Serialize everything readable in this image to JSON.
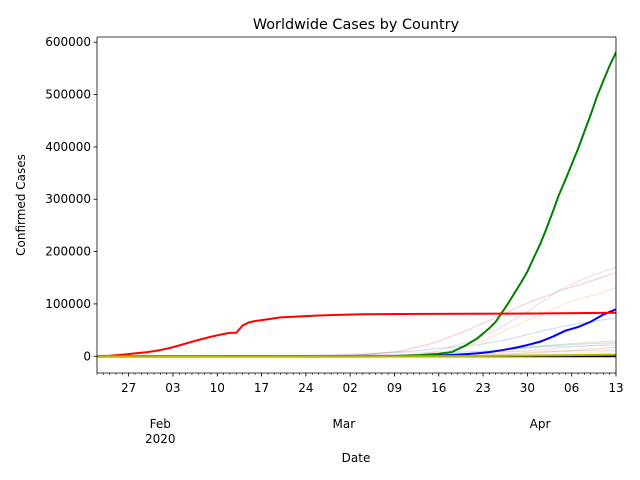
{
  "chart_data": {
    "type": "line",
    "title": "Worldwide Cases by Country",
    "xlabel": "Date",
    "ylabel": "Confirmed Cases",
    "x_start": "2020-01-22",
    "x_end": "2020-04-13",
    "xlim": [
      "2020-01-22",
      "2020-04-13"
    ],
    "ylim": [
      -32000,
      610000
    ],
    "grid": false,
    "legend": "none",
    "y_ticks": [
      0,
      100000,
      200000,
      300000,
      400000,
      500000,
      600000
    ],
    "y_tick_labels": [
      "0",
      "100000",
      "200000",
      "300000",
      "400000",
      "500000",
      "600000"
    ],
    "x_ticks": [
      {
        "date": "2020-01-27",
        "label": "27"
      },
      {
        "date": "2020-02-03",
        "label": "03"
      },
      {
        "date": "2020-02-10",
        "label": "10"
      },
      {
        "date": "2020-02-17",
        "label": "17"
      },
      {
        "date": "2020-02-24",
        "label": "24"
      },
      {
        "date": "2020-03-02",
        "label": "02"
      },
      {
        "date": "2020-03-09",
        "label": "09"
      },
      {
        "date": "2020-03-16",
        "label": "16"
      },
      {
        "date": "2020-03-23",
        "label": "23"
      },
      {
        "date": "2020-03-30",
        "label": "30"
      },
      {
        "date": "2020-04-06",
        "label": "06"
      },
      {
        "date": "2020-04-13",
        "label": "13"
      }
    ],
    "month_labels": [
      {
        "date": "2020-02-01",
        "label": "Feb",
        "year": "2020"
      },
      {
        "date": "2020-03-01",
        "label": "Mar",
        "year": ""
      },
      {
        "date": "2020-04-01",
        "label": "Apr",
        "year": ""
      }
    ],
    "series": [
      {
        "color": "#d62728",
        "width": 1,
        "alpha": 0.25,
        "points": [
          [
            "2020-01-22",
            0
          ],
          [
            "2020-02-21",
            0
          ],
          [
            "2020-02-28",
            800
          ],
          [
            "2020-03-05",
            3900
          ],
          [
            "2020-03-10",
            10000
          ],
          [
            "2020-03-15",
            24700
          ],
          [
            "2020-03-20",
            47000
          ],
          [
            "2020-03-25",
            74000
          ],
          [
            "2020-03-30",
            101700
          ],
          [
            "2020-04-04",
            124600
          ],
          [
            "2020-04-09",
            143600
          ],
          [
            "2020-04-13",
            159500
          ]
        ]
      },
      {
        "color": "#9467bd",
        "width": 1,
        "alpha": 0.25,
        "points": [
          [
            "2020-01-22",
            0
          ],
          [
            "2020-02-28",
            100
          ],
          [
            "2020-03-05",
            300
          ],
          [
            "2020-03-10",
            1700
          ],
          [
            "2020-03-15",
            7800
          ],
          [
            "2020-03-20",
            25000
          ],
          [
            "2020-03-25",
            49500
          ],
          [
            "2020-03-30",
            85200
          ],
          [
            "2020-04-04",
            126200
          ],
          [
            "2020-04-09",
            153200
          ],
          [
            "2020-04-13",
            170100
          ]
        ]
      },
      {
        "color": "#ff7f0e",
        "width": 1,
        "alpha": 0.25,
        "points": [
          [
            "2020-01-22",
            0
          ],
          [
            "2020-03-01",
            130
          ],
          [
            "2020-03-08",
            1100
          ],
          [
            "2020-03-13",
            3700
          ],
          [
            "2020-03-18",
            9100
          ],
          [
            "2020-03-23",
            30000
          ],
          [
            "2020-03-28",
            57700
          ],
          [
            "2020-04-02",
            84000
          ],
          [
            "2020-04-07",
            109700
          ],
          [
            "2020-04-10",
            118800
          ],
          [
            "2020-04-13",
            131400
          ]
        ]
      },
      {
        "color": "#1f77b4",
        "width": 1,
        "alpha": 0.25,
        "points": [
          [
            "2020-01-22",
            0
          ],
          [
            "2020-02-20",
            0
          ],
          [
            "2020-02-26",
            140
          ],
          [
            "2020-03-02",
            1500
          ],
          [
            "2020-03-07",
            5800
          ],
          [
            "2020-03-12",
            10000
          ],
          [
            "2020-03-17",
            16200
          ],
          [
            "2020-03-22",
            21600
          ],
          [
            "2020-03-27",
            32300
          ],
          [
            "2020-04-01",
            47600
          ],
          [
            "2020-04-06",
            60500
          ],
          [
            "2020-04-13",
            73300
          ]
        ]
      },
      {
        "color": "#8c564b",
        "width": 1,
        "alpha": 0.25,
        "points": [
          [
            "2020-01-22",
            0
          ],
          [
            "2020-03-03",
            50
          ],
          [
            "2020-03-10",
            380
          ],
          [
            "2020-03-15",
            1140
          ],
          [
            "2020-03-20",
            3980
          ],
          [
            "2020-03-25",
            9530
          ],
          [
            "2020-03-30",
            22140
          ],
          [
            "2020-04-04",
            41900
          ],
          [
            "2020-04-09",
            65900
          ],
          [
            "2020-04-13",
            88600
          ]
        ]
      },
      {
        "color": "#2ca02c",
        "width": 1,
        "alpha": 0.25,
        "points": [
          [
            "2020-01-22",
            0
          ],
          [
            "2020-03-02",
            40
          ],
          [
            "2020-03-08",
            270
          ],
          [
            "2020-03-14",
            1140
          ],
          [
            "2020-03-20",
            4200
          ],
          [
            "2020-03-26",
            11800
          ],
          [
            "2020-04-01",
            19900
          ],
          [
            "2020-04-07",
            24800
          ],
          [
            "2020-04-13",
            29100
          ]
        ]
      },
      {
        "color": "#7f7f7f",
        "width": 1,
        "alpha": 0.25,
        "points": [
          [
            "2020-01-22",
            0
          ],
          [
            "2020-03-04",
            10
          ],
          [
            "2020-03-10",
            50
          ],
          [
            "2020-03-16",
            1300
          ],
          [
            "2020-03-22",
            5700
          ],
          [
            "2020-03-28",
            15200
          ],
          [
            "2020-04-03",
            19900
          ],
          [
            "2020-04-08",
            23300
          ],
          [
            "2020-04-13",
            25700
          ]
        ]
      },
      {
        "color": "#bcbd22",
        "width": 1,
        "alpha": 0.25,
        "points": [
          [
            "2020-01-22",
            0
          ],
          [
            "2020-03-05",
            30
          ],
          [
            "2020-03-11",
            140
          ],
          [
            "2020-03-17",
            480
          ],
          [
            "2020-03-23",
            1630
          ],
          [
            "2020-03-29",
            5890
          ],
          [
            "2020-04-04",
            9840
          ],
          [
            "2020-04-09",
            14070
          ],
          [
            "2020-04-13",
            17180
          ]
        ]
      },
      {
        "color": "#e377c2",
        "width": 1,
        "alpha": 0.25,
        "points": [
          [
            "2020-01-22",
            0
          ],
          [
            "2020-02-27",
            10
          ],
          [
            "2020-03-05",
            70
          ],
          [
            "2020-03-12",
            700
          ],
          [
            "2020-03-18",
            2500
          ],
          [
            "2020-03-24",
            5500
          ],
          [
            "2020-03-30",
            10900
          ],
          [
            "2020-04-05",
            16500
          ],
          [
            "2020-04-13",
            24400
          ]
        ]
      },
      {
        "color": "#17becf",
        "width": 1,
        "alpha": 0.25,
        "points": [
          [
            "2020-01-22",
            0
          ],
          [
            "2020-03-01",
            80
          ],
          [
            "2020-03-08",
            600
          ],
          [
            "2020-03-14",
            3700
          ],
          [
            "2020-03-20",
            8000
          ],
          [
            "2020-03-26",
            11800
          ],
          [
            "2020-04-01",
            17400
          ],
          [
            "2020-04-07",
            19300
          ],
          [
            "2020-04-13",
            21300
          ]
        ]
      },
      {
        "color": "#ff9896",
        "width": 1,
        "alpha": 0.25,
        "points": [
          [
            "2020-01-22",
            0
          ],
          [
            "2020-03-06",
            20
          ],
          [
            "2020-03-12",
            210
          ],
          [
            "2020-03-18",
            1200
          ],
          [
            "2020-03-24",
            2880
          ],
          [
            "2020-03-30",
            6400
          ],
          [
            "2020-04-05",
            9900
          ],
          [
            "2020-04-13",
            16800
          ]
        ]
      },
      {
        "color": "#aec7e8",
        "width": 1,
        "alpha": 0.25,
        "points": [
          [
            "2020-01-22",
            0
          ],
          [
            "2020-03-07",
            20
          ],
          [
            "2020-03-14",
            240
          ],
          [
            "2020-03-21",
            1200
          ],
          [
            "2020-03-28",
            4000
          ],
          [
            "2020-04-04",
            8300
          ],
          [
            "2020-04-13",
            12600
          ]
        ]
      },
      {
        "color": "#c49c94",
        "width": 1,
        "alpha": 0.25,
        "points": [
          [
            "2020-01-22",
            0
          ],
          [
            "2020-02-20",
            150
          ],
          [
            "2020-02-26",
            1300
          ],
          [
            "2020-03-03",
            5200
          ],
          [
            "2020-03-09",
            7500
          ],
          [
            "2020-03-15",
            8160
          ],
          [
            "2020-03-22",
            8900
          ],
          [
            "2020-03-29",
            9580
          ],
          [
            "2020-04-05",
            10280
          ],
          [
            "2020-04-13",
            10540
          ]
        ]
      },
      {
        "color": "#dbdb8d",
        "width": 1,
        "alpha": 0.25,
        "points": [
          [
            "2020-01-22",
            0
          ],
          [
            "2020-03-08",
            20
          ],
          [
            "2020-03-15",
            100
          ],
          [
            "2020-03-22",
            900
          ],
          [
            "2020-03-29",
            2900
          ],
          [
            "2020-04-05",
            5600
          ],
          [
            "2020-04-13",
            9200
          ]
        ]
      },
      {
        "color": "#0000ff",
        "width": 2,
        "alpha": 1,
        "points": [
          [
            "2020-01-22",
            0
          ],
          [
            "2020-03-13",
            900
          ],
          [
            "2020-03-17",
            1900
          ],
          [
            "2020-03-20",
            3900
          ],
          [
            "2020-03-22",
            5600
          ],
          [
            "2020-03-24",
            7800
          ],
          [
            "2020-03-26",
            11600
          ],
          [
            "2020-03-28",
            16000
          ],
          [
            "2020-03-30",
            21400
          ],
          [
            "2020-04-01",
            27700
          ],
          [
            "2020-04-03",
            37400
          ],
          [
            "2020-04-05",
            48800
          ],
          [
            "2020-04-07",
            55700
          ],
          [
            "2020-04-09",
            65900
          ],
          [
            "2020-04-11",
            79900
          ],
          [
            "2020-04-13",
            89600
          ]
        ]
      },
      {
        "color": "#008000",
        "width": 2,
        "alpha": 1,
        "points": [
          [
            "2020-01-22",
            0
          ],
          [
            "2020-03-01",
            75
          ],
          [
            "2020-03-05",
            220
          ],
          [
            "2020-03-09",
            600
          ],
          [
            "2020-03-13",
            2200
          ],
          [
            "2020-03-16",
            4600
          ],
          [
            "2020-03-18",
            7800
          ],
          [
            "2020-03-20",
            19100
          ],
          [
            "2020-03-22",
            33300
          ],
          [
            "2020-03-24",
            53700
          ],
          [
            "2020-03-25",
            65800
          ],
          [
            "2020-03-26",
            83800
          ],
          [
            "2020-03-27",
            101700
          ],
          [
            "2020-03-28",
            121500
          ],
          [
            "2020-03-29",
            140900
          ],
          [
            "2020-03-30",
            161800
          ],
          [
            "2020-03-31",
            188200
          ],
          [
            "2020-04-01",
            213600
          ],
          [
            "2020-04-02",
            243500
          ],
          [
            "2020-04-03",
            275600
          ],
          [
            "2020-04-04",
            308900
          ],
          [
            "2020-04-05",
            337000
          ],
          [
            "2020-04-06",
            366600
          ],
          [
            "2020-04-07",
            396200
          ],
          [
            "2020-04-08",
            429100
          ],
          [
            "2020-04-09",
            461400
          ],
          [
            "2020-04-10",
            496500
          ],
          [
            "2020-04-11",
            526400
          ],
          [
            "2020-04-12",
            555300
          ],
          [
            "2020-04-13",
            580600
          ]
        ]
      },
      {
        "color": "#ff0000",
        "width": 2,
        "alpha": 1,
        "points": [
          [
            "2020-01-22",
            548
          ],
          [
            "2020-01-24",
            1070
          ],
          [
            "2020-01-26",
            2800
          ],
          [
            "2020-01-28",
            5500
          ],
          [
            "2020-01-30",
            8000
          ],
          [
            "2020-02-01",
            11800
          ],
          [
            "2020-02-03",
            17200
          ],
          [
            "2020-02-05",
            24300
          ],
          [
            "2020-02-07",
            31100
          ],
          [
            "2020-02-09",
            37200
          ],
          [
            "2020-02-11",
            42600
          ],
          [
            "2020-02-12",
            44700
          ],
          [
            "2020-02-13",
            44800
          ],
          [
            "2020-02-14",
            58800
          ],
          [
            "2020-02-15",
            64600
          ],
          [
            "2020-02-16",
            67400
          ],
          [
            "2020-02-18",
            70800
          ],
          [
            "2020-02-20",
            74300
          ],
          [
            "2020-02-22",
            75600
          ],
          [
            "2020-02-24",
            76700
          ],
          [
            "2020-02-26",
            77800
          ],
          [
            "2020-02-29",
            79000
          ],
          [
            "2020-03-04",
            80200
          ],
          [
            "2020-03-10",
            80800
          ],
          [
            "2020-03-20",
            81200
          ],
          [
            "2020-03-31",
            81600
          ],
          [
            "2020-04-13",
            83100
          ]
        ]
      },
      {
        "color": "#000000",
        "width": 2,
        "alpha": 1,
        "points": [
          [
            "2020-01-22",
            0
          ],
          [
            "2020-04-13",
            0
          ]
        ]
      },
      {
        "color": "#b8b800",
        "width": 2,
        "alpha": 1,
        "points": [
          [
            "2020-01-22",
            0
          ],
          [
            "2020-03-10",
            30
          ],
          [
            "2020-03-20",
            300
          ],
          [
            "2020-03-31",
            1400
          ],
          [
            "2020-04-13",
            3200
          ]
        ]
      }
    ]
  }
}
